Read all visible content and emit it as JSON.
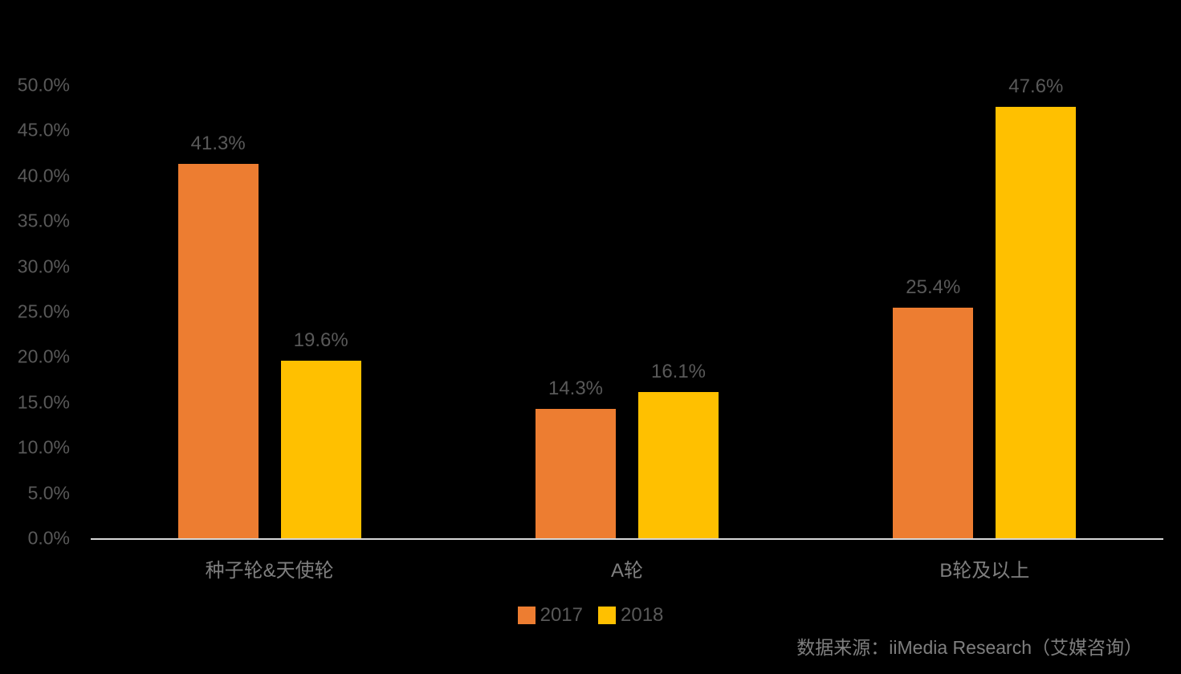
{
  "chart_data": {
    "type": "bar",
    "title": "",
    "categories": [
      "种子轮&天使轮",
      "A轮",
      "B轮及以上"
    ],
    "series": [
      {
        "name": "2017",
        "color": "#ED7D31",
        "values": [
          41.3,
          14.3,
          25.4
        ]
      },
      {
        "name": "2018",
        "color": "#FFC000",
        "values": [
          19.6,
          16.1,
          47.6
        ]
      }
    ],
    "value_labels": [
      [
        "41.3%",
        "14.3%",
        "25.4%"
      ],
      [
        "19.6%",
        "16.1%",
        "47.6%"
      ]
    ],
    "xlabel": "",
    "ylabel": "",
    "ylim": [
      0,
      50
    ],
    "ytick_step": 5,
    "ytick_labels": [
      "0.0%",
      "5.0%",
      "10.0%",
      "15.0%",
      "20.0%",
      "25.0%",
      "30.0%",
      "35.0%",
      "40.0%",
      "45.0%",
      "50.0%"
    ],
    "grid": false,
    "legend_position": "bottom",
    "source": "数据来源：iiMedia Research（艾媒咨询）"
  },
  "colors": {
    "background": "#000000",
    "axis_line": "#D6D6D6",
    "tick_label": "#595959",
    "value_label": "#595959",
    "category_label": "#7F7F7F",
    "legend_label": "#595959",
    "source_text": "#7F7F7F"
  }
}
